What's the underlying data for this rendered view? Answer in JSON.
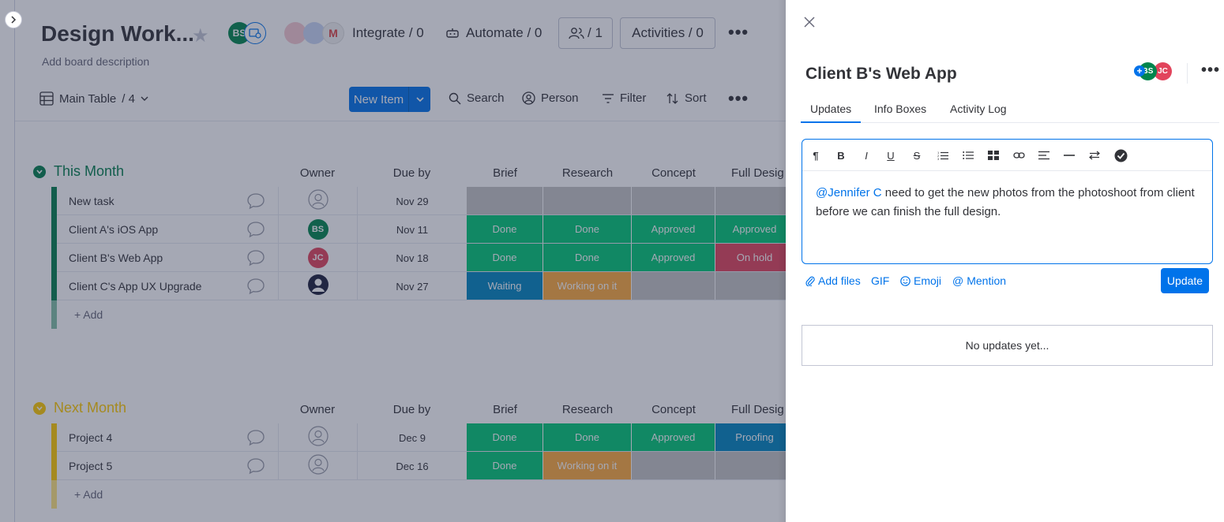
{
  "board": {
    "title": "Design Work...",
    "description": "Add board description",
    "header_avatars": [
      {
        "initials": "BS",
        "color": "#00854d"
      }
    ],
    "integrate": "Integrate / 0",
    "automate": "Automate / 0",
    "members": "/ 1",
    "activities": "Activities / 0",
    "view": {
      "name": "Main Table",
      "count": "/ 4"
    },
    "toolbar": {
      "new_item": "New Item",
      "search": "Search",
      "person": "Person",
      "filter": "Filter",
      "sort": "Sort"
    },
    "columns": [
      "Owner",
      "Due by",
      "Brief",
      "Research",
      "Concept",
      "Full Desig"
    ],
    "groups": [
      {
        "title": "This Month",
        "color": "#037f4c",
        "rows": [
          {
            "name": "New task",
            "owner": {
              "type": "empty"
            },
            "due": "Nov 29",
            "brief": "",
            "research": "",
            "concept": "",
            "full": ""
          },
          {
            "name": "Client A's iOS App",
            "owner": {
              "type": "initials",
              "initials": "BS",
              "color": "#00854d"
            },
            "due": "Nov 11",
            "brief": "Done",
            "research": "Done",
            "concept": "Approved",
            "full": "Approved"
          },
          {
            "name": "Client B's Web App",
            "owner": {
              "type": "initials",
              "initials": "JC",
              "color": "#e2445c"
            },
            "due": "Nov 18",
            "brief": "Done",
            "research": "Done",
            "concept": "Approved",
            "full": "On hold"
          },
          {
            "name": "Client C's App UX Upgrade",
            "owner": {
              "type": "photo"
            },
            "due": "Nov 27",
            "brief": "Waiting",
            "research": "Working on it",
            "concept": "",
            "full": ""
          }
        ],
        "add_label": "+ Add"
      },
      {
        "title": "Next Month",
        "color": "#ffcb00",
        "rows": [
          {
            "name": "Project 4",
            "owner": {
              "type": "empty"
            },
            "due": "Dec 9",
            "brief": "Done",
            "research": "Done",
            "concept": "Approved",
            "full": "Proofing"
          },
          {
            "name": "Project 5",
            "owner": {
              "type": "empty"
            },
            "due": "Dec 16",
            "brief": "Done",
            "research": "Working on it",
            "concept": "",
            "full": ""
          }
        ],
        "add_label": "+ Add"
      }
    ],
    "status_colors": {
      "Done": "#00c875",
      "Approved": "#00c875",
      "On hold": "#e2445c",
      "Waiting": "#0086c0",
      "Working on it": "#fdab3d",
      "Proofing": "#0086c0",
      "": "#c4c4c4"
    }
  },
  "panel": {
    "title": "Client B's Web App",
    "avatars": [
      {
        "initials": "BS",
        "color": "#00854d"
      },
      {
        "initials": "JC",
        "color": "#e2445c"
      }
    ],
    "tabs": [
      "Updates",
      "Info Boxes",
      "Activity Log"
    ],
    "active_tab": "Updates",
    "editor": {
      "toolbar_icons": [
        "paragraph-icon",
        "bold-icon",
        "italic-icon",
        "underline-icon",
        "strikethrough-icon",
        "numbered-list-icon",
        "bullet-list-icon",
        "table-icon",
        "link-icon",
        "align-icon",
        "divider-icon",
        "direction-icon",
        "checklist-icon"
      ],
      "mention": "@Jennifer C",
      "text": " need to get the new photos from the photoshoot from client before we can finish the full design."
    },
    "actions": {
      "add_files": "Add files",
      "gif": "GIF",
      "emoji": "Emoji",
      "mention": "Mention",
      "update": "Update"
    },
    "empty_state": "No updates yet..."
  }
}
